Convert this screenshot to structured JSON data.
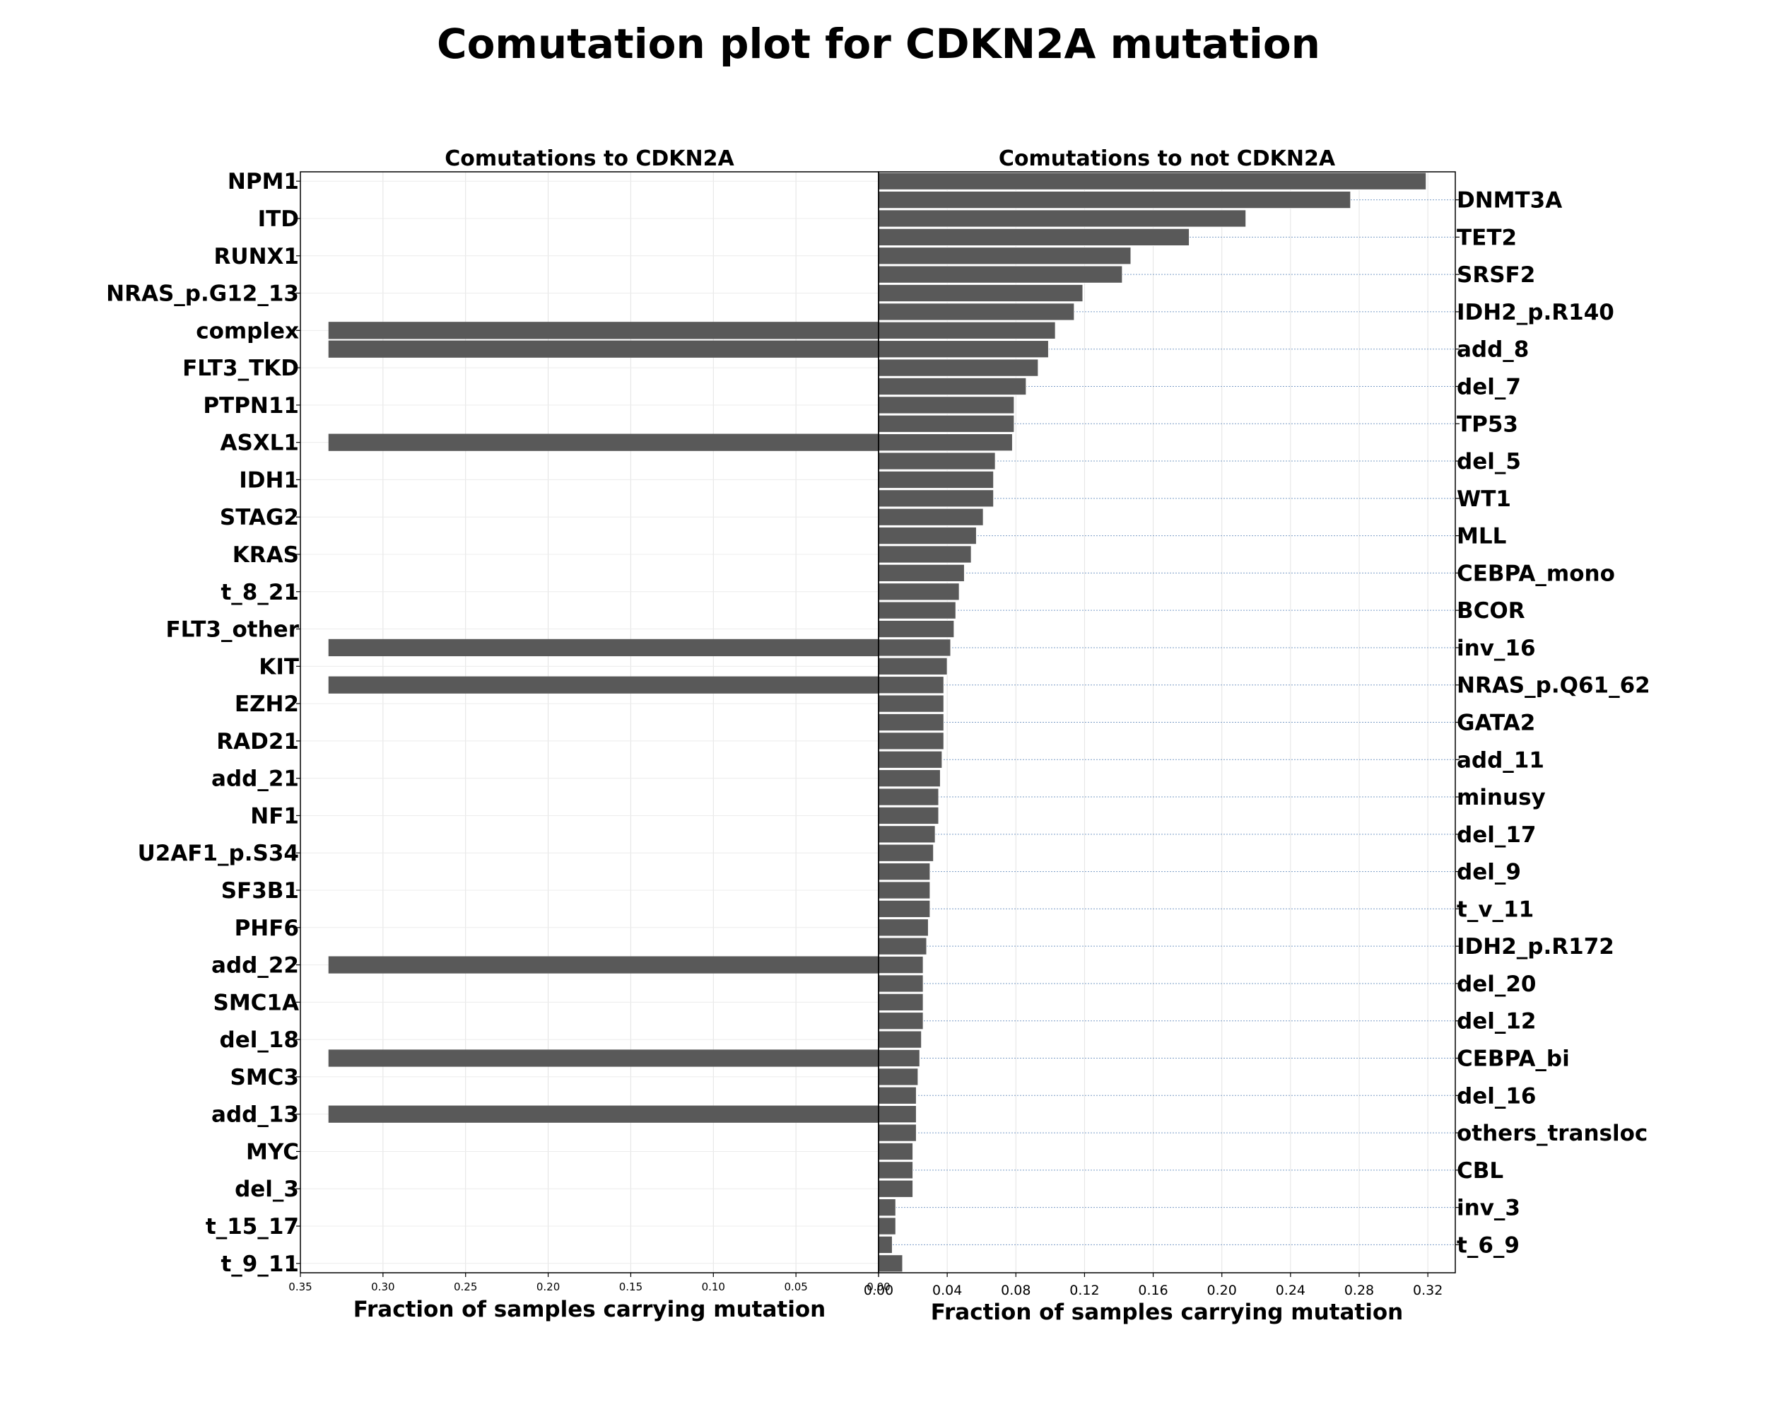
{
  "chart_data": {
    "type": "bar",
    "orientation": "horizontal",
    "title": "Comutation plot for CDKN2A mutation",
    "bar_color": "#595959",
    "grid": true,
    "panels": [
      {
        "title": "Comutations to CDKN2A",
        "xlabel": "Fraction of samples carrying mutation",
        "xlim": [
          0.35,
          0.0
        ],
        "x_inverted": true,
        "xticks": [
          "0.35",
          "0.30",
          "0.25",
          "0.20",
          "0.15",
          "0.10",
          "0.05",
          "0.00"
        ],
        "xtick_values": [
          0.35,
          0.3,
          0.25,
          0.2,
          0.15,
          0.1,
          0.05,
          0.0
        ],
        "ytick_side": "left",
        "yticklabels": [
          "NPM1",
          "ITD",
          "RUNX1",
          "NRAS_p.G12_13",
          "complex",
          "FLT3_TKD",
          "PTPN11",
          "ASXL1",
          "IDH1",
          "STAG2",
          "KRAS",
          "t_8_21",
          "FLT3_other",
          "KIT",
          "EZH2",
          "RAD21",
          "add_21",
          "NF1",
          "U2AF1_p.S34",
          "SF3B1",
          "PHF6",
          "add_22",
          "SMC1A",
          "del_18",
          "SMC3",
          "add_13",
          "MYC",
          "del_3",
          "t_15_17",
          "t_9_11"
        ],
        "ytick_slots": [
          0,
          2,
          4,
          6,
          8,
          10,
          12,
          14,
          16,
          18,
          20,
          22,
          24,
          26,
          28,
          30,
          32,
          34,
          36,
          38,
          40,
          42,
          44,
          46,
          48,
          50,
          52,
          54,
          56,
          58
        ],
        "bars": [
          {
            "slot": 8,
            "value": 0.333
          },
          {
            "slot": 9,
            "value": 0.333
          },
          {
            "slot": 14,
            "value": 0.333
          },
          {
            "slot": 25,
            "value": 0.333
          },
          {
            "slot": 27,
            "value": 0.333
          },
          {
            "slot": 42,
            "value": 0.333
          },
          {
            "slot": 47,
            "value": 0.333
          },
          {
            "slot": 50,
            "value": 0.333
          }
        ]
      },
      {
        "title": "Comutations to not CDKN2A",
        "xlabel": "Fraction of samples carrying mutation",
        "xlim": [
          0.0,
          0.336
        ],
        "xticks": [
          "0.00",
          "0.04",
          "0.08",
          "0.12",
          "0.16",
          "0.20",
          "0.24",
          "0.28",
          "0.32"
        ],
        "xtick_values": [
          0.0,
          0.04,
          0.08,
          0.12,
          0.16,
          0.2,
          0.24,
          0.28,
          0.32
        ],
        "ytick_side": "right",
        "yticklabels": [
          "DNMT3A",
          "TET2",
          "SRSF2",
          "IDH2_p.R140",
          "add_8",
          "del_7",
          "TP53",
          "del_5",
          "WT1",
          "MLL",
          "CEBPA_mono",
          "BCOR",
          "inv_16",
          "NRAS_p.Q61_62",
          "GATA2",
          "add_11",
          "minusy",
          "del_17",
          "del_9",
          "t_v_11",
          "IDH2_p.R172",
          "del_20",
          "del_12",
          "CEBPA_bi",
          "del_16",
          "others_transloc",
          "CBL",
          "inv_3",
          "t_6_9"
        ],
        "ytick_slots": [
          1,
          3,
          5,
          7,
          9,
          11,
          13,
          15,
          17,
          19,
          21,
          23,
          25,
          27,
          29,
          31,
          33,
          35,
          37,
          39,
          41,
          43,
          45,
          47,
          49,
          51,
          53,
          55,
          57
        ],
        "values": [
          0.319,
          0.275,
          0.214,
          0.181,
          0.147,
          0.142,
          0.119,
          0.114,
          0.103,
          0.099,
          0.093,
          0.086,
          0.079,
          0.079,
          0.078,
          0.068,
          0.067,
          0.067,
          0.061,
          0.057,
          0.054,
          0.05,
          0.047,
          0.045,
          0.044,
          0.042,
          0.04,
          0.038,
          0.038,
          0.038,
          0.038,
          0.037,
          0.036,
          0.035,
          0.035,
          0.033,
          0.032,
          0.03,
          0.03,
          0.03,
          0.029,
          0.028,
          0.026,
          0.026,
          0.026,
          0.026,
          0.025,
          0.024,
          0.023,
          0.022,
          0.022,
          0.022,
          0.02,
          0.02,
          0.02,
          0.01,
          0.01,
          0.008,
          0.014
        ]
      }
    ]
  }
}
